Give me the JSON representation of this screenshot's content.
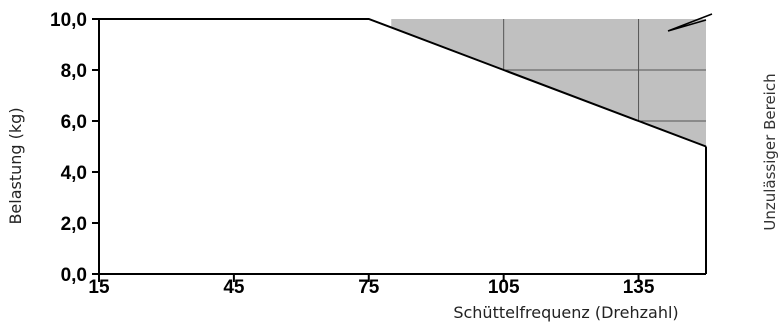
{
  "chart_data": {
    "type": "area",
    "xlabel": "Schüttelfrequenz (Drehzahl)",
    "ylabel": "Belastung (kg)",
    "x_ticks": [
      "15",
      "45",
      "75",
      "105",
      "135"
    ],
    "y_ticks": [
      "0,0",
      "2,0",
      "4,0",
      "6,0",
      "8,0",
      "10,0"
    ],
    "xlim": [
      15,
      150
    ],
    "ylim": [
      0,
      10
    ],
    "series": [
      {
        "x": [
          15,
          75,
          105,
          135,
          150
        ],
        "y": [
          10,
          10,
          8,
          6,
          5
        ]
      }
    ],
    "shaded_region": {
      "label": "Unzulässiger Bereich",
      "color": "#c0c0c0",
      "x": [
        80,
        150
      ],
      "y_top": 10
    },
    "grid": false
  }
}
